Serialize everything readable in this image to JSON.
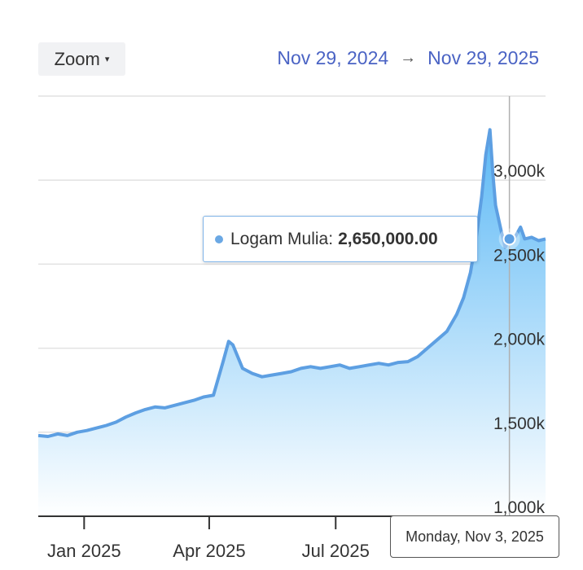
{
  "toolbar": {
    "zoom_label": "Zoom",
    "zoom_caret": "▾",
    "date_from": "Nov 29, 2024",
    "date_arrow": "→",
    "date_to": "Nov 29, 2025"
  },
  "tooltip": {
    "series_name": "Logam Mulia:",
    "value": "2,650,000.00"
  },
  "crosshair_label": "Monday, Nov 3, 2025",
  "colors": {
    "line": "#5d9fe2",
    "area_top": "#5bb8f5",
    "area_bottom": "#ffffff",
    "grid": "#e2e2e2",
    "crosshair": "#b0b0b0",
    "link": "#4a63c4"
  },
  "chart_data": {
    "type": "area",
    "series": [
      {
        "name": "Logam Mulia",
        "x": [
          "2024-11-29",
          "2024-12-06",
          "2024-12-13",
          "2024-12-20",
          "2024-12-27",
          "2025-01-03",
          "2025-01-10",
          "2025-01-17",
          "2025-01-24",
          "2025-01-31",
          "2025-02-07",
          "2025-02-14",
          "2025-02-21",
          "2025-02-28",
          "2025-03-07",
          "2025-03-14",
          "2025-03-21",
          "2025-03-28",
          "2025-04-04",
          "2025-04-11",
          "2025-04-15",
          "2025-04-18",
          "2025-04-22",
          "2025-04-25",
          "2025-05-02",
          "2025-05-09",
          "2025-05-16",
          "2025-05-23",
          "2025-05-30",
          "2025-06-06",
          "2025-06-13",
          "2025-06-20",
          "2025-06-27",
          "2025-07-04",
          "2025-07-11",
          "2025-07-18",
          "2025-07-25",
          "2025-08-01",
          "2025-08-08",
          "2025-08-15",
          "2025-08-22",
          "2025-08-29",
          "2025-09-05",
          "2025-09-12",
          "2025-09-19",
          "2025-09-26",
          "2025-10-01",
          "2025-10-06",
          "2025-10-10",
          "2025-10-14",
          "2025-10-17",
          "2025-10-20",
          "2025-10-22",
          "2025-10-24",
          "2025-10-28",
          "2025-10-31",
          "2025-11-03",
          "2025-11-07",
          "2025-11-11",
          "2025-11-14",
          "2025-11-19",
          "2025-11-24",
          "2025-11-29"
        ],
        "y": [
          1480000,
          1475000,
          1490000,
          1480000,
          1500000,
          1510000,
          1525000,
          1540000,
          1560000,
          1590000,
          1615000,
          1635000,
          1650000,
          1645000,
          1660000,
          1675000,
          1690000,
          1710000,
          1720000,
          1920000,
          2040000,
          2020000,
          1940000,
          1880000,
          1850000,
          1830000,
          1840000,
          1850000,
          1860000,
          1880000,
          1890000,
          1880000,
          1890000,
          1900000,
          1880000,
          1890000,
          1900000,
          1910000,
          1900000,
          1915000,
          1920000,
          1950000,
          2000000,
          2050000,
          2100000,
          2200000,
          2300000,
          2450000,
          2650000,
          2900000,
          3150000,
          3300000,
          3050000,
          2850000,
          2700000,
          2600000,
          2650000,
          2660000,
          2720000,
          2650000,
          2660000,
          2640000,
          2650000
        ]
      }
    ],
    "x_tick_labels": [
      "Jan 2025",
      "Apr 2025",
      "Jul 2025"
    ],
    "x_ticks": [
      "2025-01-01",
      "2025-04-01",
      "2025-07-01"
    ],
    "y_tick_labels": [
      "1,000k",
      "1,500k",
      "2,000k",
      "2,500k",
      "3,000k"
    ],
    "y_ticks": [
      1000000,
      1500000,
      2000000,
      2500000,
      3000000
    ],
    "xlim": [
      "2024-11-29",
      "2025-11-29"
    ],
    "ylim": [
      1000000,
      3500000
    ],
    "crosshair_x": "2025-11-03",
    "grid": true,
    "legend": "none"
  }
}
